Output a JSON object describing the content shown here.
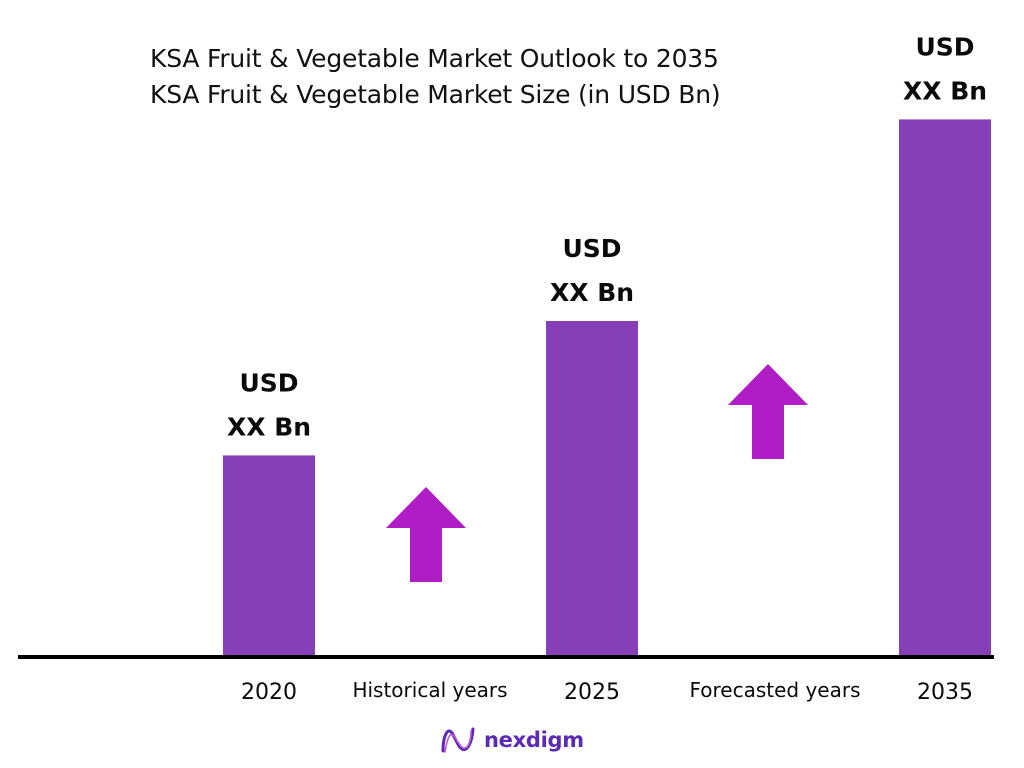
{
  "title": {
    "line1": "KSA Fruit & Vegetable Market Outlook to 2035",
    "line2": "KSA Fruit & Vegetable Market Size (in USD Bn)"
  },
  "brand": {
    "name": "nexdigm",
    "logo_icon": "nexdigm-logo-icon",
    "color": "#5b2bb5"
  },
  "colors": {
    "bar": "#8540b8",
    "arrow": "#b01cc6",
    "axis": "#000000"
  },
  "chart_data": {
    "type": "bar",
    "categories": [
      "2020",
      "2025",
      "2035"
    ],
    "value_labels": [
      [
        "USD",
        "XX Bn"
      ],
      [
        "USD",
        "XX Bn"
      ],
      [
        "USD",
        "XX Bn"
      ]
    ],
    "relative_values": [
      0.36,
      0.6,
      0.96
    ],
    "period_labels": [
      "Historical years",
      "Forecasted years"
    ],
    "growth_arrows": 2,
    "legend": "none",
    "grid": false,
    "y_axis_shown": false
  }
}
